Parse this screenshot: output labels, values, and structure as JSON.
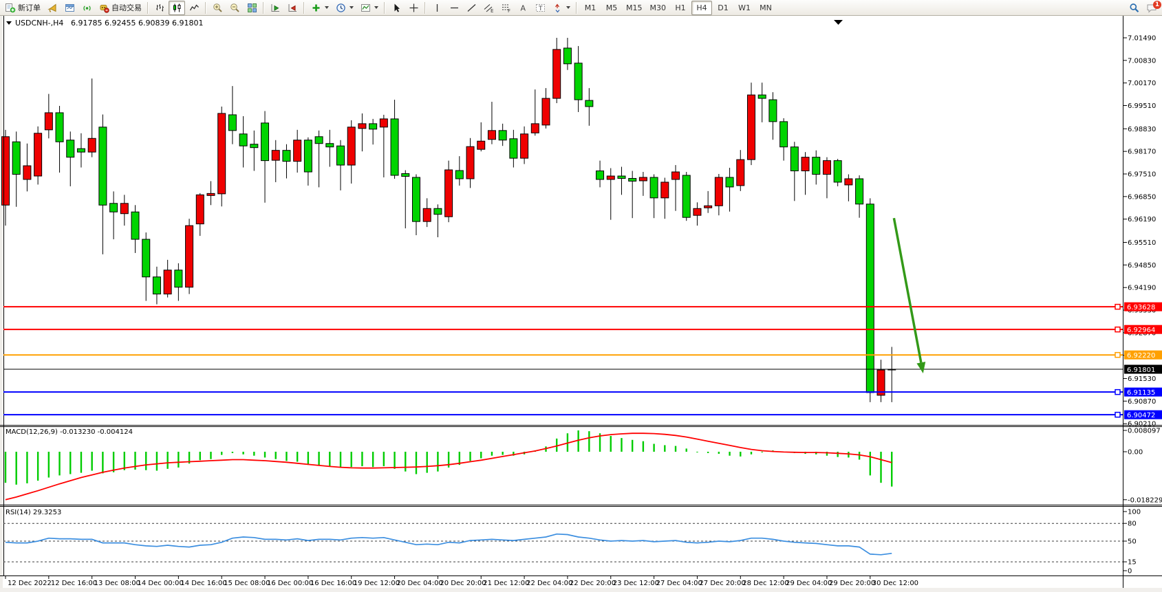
{
  "toolbar": {
    "notification_count": "1",
    "timeframes": {
      "items": [
        "M1",
        "M5",
        "M15",
        "M30",
        "H1",
        "H4",
        "D1",
        "W1",
        "MN"
      ],
      "active": "H4"
    },
    "groups": [
      {
        "type": "buttons",
        "items": [
          {
            "name": "new-order-button",
            "icon": "new-order",
            "label": "新订单"
          }
        ]
      },
      {
        "type": "buttons",
        "items": [
          {
            "name": "alerts-button",
            "icon": "horn"
          },
          {
            "name": "open-chart-window-button",
            "icon": "window"
          },
          {
            "name": "signals-button",
            "icon": "signal"
          },
          {
            "name": "auto-trading-button",
            "icon": "autotrade",
            "label": "自动交易"
          }
        ]
      },
      {
        "type": "sep"
      },
      {
        "type": "buttons",
        "items": [
          {
            "name": "bar-chart-type-button",
            "icon": "bars"
          },
          {
            "name": "candlestick-chart-type-button",
            "icon": "candles",
            "active": true
          },
          {
            "name": "line-chart-type-button",
            "icon": "linechart"
          }
        ]
      },
      {
        "type": "sep"
      },
      {
        "type": "buttons",
        "items": [
          {
            "name": "zoom-in-button",
            "icon": "zoom-in"
          },
          {
            "name": "zoom-out-button",
            "icon": "zoom-out"
          },
          {
            "name": "tile-windows-button",
            "icon": "tile"
          }
        ]
      },
      {
        "type": "sep"
      },
      {
        "type": "buttons",
        "items": [
          {
            "name": "auto-scroll-button",
            "icon": "autoscroll"
          },
          {
            "name": "chart-shift-button",
            "icon": "shift"
          }
        ]
      },
      {
        "type": "sep"
      },
      {
        "type": "buttons",
        "items": [
          {
            "name": "indicators-button",
            "icon": "indicators",
            "caret": true
          },
          {
            "name": "periods-button",
            "icon": "clock",
            "caret": true
          },
          {
            "name": "templates-button",
            "icon": "template",
            "caret": true
          }
        ]
      },
      {
        "type": "sep"
      },
      {
        "type": "buttons",
        "items": [
          {
            "name": "cursor-tool-button",
            "icon": "cursor"
          },
          {
            "name": "crosshair-tool-button",
            "icon": "crosshair"
          }
        ]
      },
      {
        "type": "sep"
      },
      {
        "type": "buttons",
        "items": [
          {
            "name": "vertical-line-tool-button",
            "icon": "vline"
          },
          {
            "name": "horizontal-line-tool-button",
            "icon": "hline"
          },
          {
            "name": "trendline-tool-button",
            "icon": "trend"
          },
          {
            "name": "channel-tool-button",
            "icon": "channel"
          },
          {
            "name": "fibonacci-tool-button",
            "icon": "fibo"
          },
          {
            "name": "text-tool-button",
            "icon": "text-a"
          },
          {
            "name": "text-label-tool-button",
            "icon": "text-t"
          },
          {
            "name": "arrows-tool-button",
            "icon": "arrows",
            "caret": true
          }
        ]
      },
      {
        "type": "sep"
      },
      {
        "type": "timeframes"
      },
      {
        "type": "spacer"
      },
      {
        "type": "buttons",
        "items": [
          {
            "name": "search-button",
            "icon": "search"
          },
          {
            "name": "notifications-chat-button",
            "icon": "chat",
            "badge": true
          }
        ]
      }
    ]
  },
  "chart_data": {
    "type": "candlestick",
    "symbol": "USDCNH-,H4",
    "timeframe": "H4",
    "title_ohlc_text": "6.91785 6.92455 6.90839 6.91801",
    "current_bar": {
      "open": 6.91785,
      "high": 6.92455,
      "low": 6.90839,
      "close": 6.91801
    },
    "price_range": [
      6.9021,
      7.0175
    ],
    "colors": {
      "up_candle": "#ef0000",
      "down_candle": "#00d400",
      "candle_border": "#000000",
      "macd_histogram": "#00cc00",
      "macd_signal": "#ff0000",
      "rsi_line": "#3b8ee0"
    },
    "price_axis_ticks": [
      {
        "p": 7.0149,
        "text": "7.01490"
      },
      {
        "p": 7.0083,
        "text": "7.00830"
      },
      {
        "p": 7.0017,
        "text": "7.00170"
      },
      {
        "p": 6.9951,
        "text": "6.99510"
      },
      {
        "p": 6.9883,
        "text": "6.98830"
      },
      {
        "p": 6.9817,
        "text": "6.98170"
      },
      {
        "p": 6.9751,
        "text": "6.97510"
      },
      {
        "p": 6.9685,
        "text": "6.96850"
      },
      {
        "p": 6.9619,
        "text": "6.96190"
      },
      {
        "p": 6.9551,
        "text": "6.95510"
      },
      {
        "p": 6.9485,
        "text": "6.94850"
      },
      {
        "p": 6.9419,
        "text": "6.94190"
      },
      {
        "p": 6.9353,
        "text": "6.93530"
      },
      {
        "p": 6.9287,
        "text": "6.92870"
      },
      {
        "p": 6.9221,
        "text": "6.92210"
      },
      {
        "p": 6.9153,
        "text": "6.91530"
      },
      {
        "p": 6.9087,
        "text": "6.90870"
      },
      {
        "p": 6.9021,
        "text": "6.90210"
      }
    ],
    "time_axis_labels": [
      "12 Dec 2022",
      "12 Dec 16:00",
      "13 Dec 08:00",
      "14 Dec 00:00",
      "14 Dec 16:00",
      "15 Dec 08:00",
      "16 Dec 00:00",
      "16 Dec 16:00",
      "19 Dec 12:00",
      "20 Dec 04:00",
      "20 Dec 20:00",
      "21 Dec 12:00",
      "22 Dec 04:00",
      "22 Dec 20:00",
      "23 Dec 12:00",
      "27 Dec 04:00",
      "27 Dec 20:00",
      "28 Dec 12:00",
      "29 Dec 04:00",
      "29 Dec 20:00",
      "30 Dec 12:00"
    ],
    "bars_per_time_label": 4,
    "horizontal_lines": [
      {
        "name": "resistance-line-1",
        "price": 6.93628,
        "text": "6.93628",
        "color": "#ff0000",
        "width": 2,
        "handle": true
      },
      {
        "name": "resistance-line-2",
        "price": 6.92964,
        "text": "6.92964",
        "color": "#ff0000",
        "width": 2,
        "handle": true
      },
      {
        "name": "pivot-line-orange",
        "price": 6.9222,
        "text": "6.92220",
        "color": "#ffa000",
        "width": 2,
        "handle": true
      },
      {
        "name": "bid-price-line",
        "price": 6.91801,
        "text": "6.91801",
        "color": "#000000",
        "width": 1,
        "handle": false
      },
      {
        "name": "support-line-1",
        "price": 6.91135,
        "text": "6.91135",
        "color": "#0000ff",
        "width": 2,
        "handle": true
      },
      {
        "name": "support-line-2",
        "price": 6.90472,
        "text": "6.90472",
        "color": "#0000ff",
        "width": 2,
        "handle": true
      }
    ],
    "candles_ohlc": [
      [
        6.966,
        6.988,
        6.96,
        6.986
      ],
      [
        6.9845,
        6.9875,
        6.9655,
        6.975
      ],
      [
        6.9735,
        6.984,
        6.97,
        6.9775
      ],
      [
        6.9745,
        6.989,
        6.972,
        6.987
      ],
      [
        6.988,
        6.9985,
        6.9855,
        6.993
      ],
      [
        6.993,
        6.995,
        6.9755,
        6.9845
      ],
      [
        6.985,
        6.9875,
        6.9715,
        6.98
      ],
      [
        6.9825,
        6.987,
        6.977,
        6.9815
      ],
      [
        6.9815,
        7.003,
        6.98,
        6.9855
      ],
      [
        6.9888,
        6.9925,
        6.9516,
        6.966
      ],
      [
        6.9665,
        6.97,
        6.956,
        6.964
      ],
      [
        6.9635,
        6.969,
        6.96,
        6.9665
      ],
      [
        6.964,
        6.966,
        6.952,
        6.956
      ],
      [
        6.956,
        6.958,
        6.938,
        6.945
      ],
      [
        6.945,
        6.948,
        6.937,
        6.94
      ],
      [
        6.94,
        6.95,
        6.939,
        6.947
      ],
      [
        6.947,
        6.949,
        6.938,
        6.942
      ],
      [
        6.942,
        6.962,
        6.94,
        6.96
      ],
      [
        6.9605,
        6.9695,
        6.957,
        6.969
      ],
      [
        6.9688,
        6.973,
        6.966,
        6.9694
      ],
      [
        6.9693,
        6.9948,
        6.9656,
        6.9928
      ],
      [
        6.9924,
        7.0008,
        6.9838,
        6.9878
      ],
      [
        6.9868,
        6.992,
        6.977,
        6.9833
      ],
      [
        6.9838,
        6.9878,
        6.976,
        6.9828
      ],
      [
        6.99,
        6.9935,
        6.9667,
        6.979
      ],
      [
        6.9791,
        6.985,
        6.9727,
        6.982
      ],
      [
        6.982,
        6.9838,
        6.9738,
        6.9788
      ],
      [
        6.9788,
        6.988,
        6.9755,
        6.985
      ],
      [
        6.985,
        6.9858,
        6.9717,
        6.9757
      ],
      [
        6.986,
        6.9878,
        6.9712,
        6.984
      ],
      [
        6.984,
        6.988,
        6.9772,
        6.983
      ],
      [
        6.9833,
        6.985,
        6.9703,
        6.9777
      ],
      [
        6.9777,
        6.9908,
        6.9723,
        6.9888
      ],
      [
        6.9884,
        6.9928,
        6.9817,
        6.9898
      ],
      [
        6.9898,
        6.9912,
        6.9837,
        6.9882
      ],
      [
        6.9888,
        6.9924,
        6.9741,
        6.9912
      ],
      [
        6.9912,
        6.9968,
        6.9737,
        6.9747
      ],
      [
        6.9752,
        6.9762,
        6.9592,
        6.9744
      ],
      [
        6.9741,
        6.975,
        6.9572,
        6.9612
      ],
      [
        6.9612,
        6.968,
        6.9596,
        6.965
      ],
      [
        6.965,
        6.9662,
        6.9566,
        6.9633
      ],
      [
        6.9626,
        6.979,
        6.961,
        6.9763
      ],
      [
        6.9761,
        6.9803,
        6.9717,
        6.9737
      ],
      [
        6.9737,
        6.9856,
        6.971,
        6.9831
      ],
      [
        6.9823,
        6.9902,
        6.9817,
        6.9847
      ],
      [
        6.9852,
        6.9962,
        6.9838,
        6.9878
      ],
      [
        6.9878,
        6.9898,
        6.9833,
        6.985
      ],
      [
        6.9854,
        6.988,
        6.977,
        6.9797
      ],
      [
        6.9797,
        6.989,
        6.978,
        6.9868
      ],
      [
        6.9871,
        6.9998,
        6.9863,
        6.9898
      ],
      [
        6.9894,
        7.0002,
        6.9884,
        6.9972
      ],
      [
        6.9972,
        7.0149,
        6.9958,
        7.0115
      ],
      [
        7.0119,
        7.0149,
        7.0055,
        7.0073
      ],
      [
        7.0075,
        7.0125,
        6.9932,
        6.9968
      ],
      [
        6.9966,
        7.0002,
        6.9892,
        6.9948
      ],
      [
        6.976,
        6.979,
        6.9712,
        6.9735
      ],
      [
        6.9735,
        6.9768,
        6.9617,
        6.9745
      ],
      [
        6.9745,
        6.9772,
        6.969,
        6.9738
      ],
      [
        6.9738,
        6.976,
        6.9622,
        6.973
      ],
      [
        6.9731,
        6.9757,
        6.9687,
        6.9741
      ],
      [
        6.9741,
        6.975,
        6.9622,
        6.9681
      ],
      [
        6.9681,
        6.974,
        6.962,
        6.9727
      ],
      [
        6.9735,
        6.9777,
        6.9643,
        6.9757
      ],
      [
        6.9747,
        6.9757,
        6.9614,
        6.9624
      ],
      [
        6.963,
        6.9668,
        6.96,
        6.965
      ],
      [
        6.9652,
        6.9701,
        6.9637,
        6.9658
      ],
      [
        6.9658,
        6.9751,
        6.963,
        6.9741
      ],
      [
        6.9741,
        6.9769,
        6.9641,
        6.9713
      ],
      [
        6.9717,
        6.9821,
        6.9701,
        6.9793
      ],
      [
        6.9793,
        7.0018,
        6.9777,
        6.9982
      ],
      [
        6.9982,
        7.0018,
        6.9902,
        6.9972
      ],
      [
        6.9968,
        6.999,
        6.9851,
        6.9904
      ],
      [
        6.9904,
        6.9914,
        6.979,
        6.983
      ],
      [
        6.983,
        6.9845,
        6.9672,
        6.976
      ],
      [
        6.976,
        6.9815,
        6.969,
        6.98
      ],
      [
        6.98,
        6.982,
        6.972,
        6.975
      ],
      [
        6.975,
        6.98,
        6.968,
        6.979
      ],
      [
        6.979,
        6.9795,
        6.9715,
        6.9727
      ],
      [
        6.9719,
        6.975,
        6.9671,
        6.9737
      ],
      [
        6.9737,
        6.9747,
        6.9623,
        6.9663
      ],
      [
        6.9663,
        6.968,
        6.9084,
        6.9112
      ],
      [
        6.9104,
        6.9208,
        6.9084,
        6.9178
      ],
      [
        6.91785,
        6.92455,
        6.90839,
        6.91801
      ]
    ],
    "indicators": {
      "macd": {
        "label": "MACD(12,26,9)",
        "values_text": "-0.013230 -0.004124",
        "macd_value": -0.01323,
        "signal_value": -0.004124,
        "axis_ticks": [
          {
            "v": 0.008097,
            "text": "0.008097"
          },
          {
            "v": 0,
            "text": "0.00"
          },
          {
            "v": -0.018229,
            "text": "-0.018229"
          }
        ],
        "range": {
          "max": 0.008097,
          "min": -0.018229
        },
        "histogram": [
          -0.0118,
          -0.0125,
          -0.012,
          -0.011,
          -0.0098,
          -0.009,
          -0.0085,
          -0.008,
          -0.0072,
          -0.0082,
          -0.0078,
          -0.007,
          -0.0068,
          -0.007,
          -0.0072,
          -0.0065,
          -0.006,
          -0.0045,
          -0.0032,
          -0.0028,
          -0.0012,
          -0.0005,
          -0.001,
          -0.0015,
          -0.0022,
          -0.0028,
          -0.0035,
          -0.0038,
          -0.005,
          -0.0052,
          -0.0055,
          -0.006,
          -0.0058,
          -0.0055,
          -0.0058,
          -0.0055,
          -0.0065,
          -0.0075,
          -0.0085,
          -0.008,
          -0.0075,
          -0.006,
          -0.005,
          -0.0035,
          -0.0025,
          -0.0015,
          -0.0012,
          -0.0015,
          -0.001,
          0.0005,
          0.002,
          0.005,
          0.007,
          0.0081,
          0.0078,
          0.007,
          0.006,
          0.0052,
          0.0045,
          0.004,
          0.003,
          0.0025,
          0.0022,
          0.0012,
          0.0002,
          -0.0005,
          -0.0008,
          -0.0015,
          -0.0018,
          -0.001,
          0.0002,
          0.0005,
          0.0002,
          -0.0005,
          -0.0008,
          -0.001,
          -0.0015,
          -0.002,
          -0.0022,
          -0.003,
          -0.009,
          -0.0118,
          -0.01323
        ],
        "signal": [
          -0.0182,
          -0.0172,
          -0.016,
          -0.0148,
          -0.0135,
          -0.0122,
          -0.011,
          -0.0098,
          -0.0088,
          -0.0078,
          -0.007,
          -0.0062,
          -0.0056,
          -0.005,
          -0.0046,
          -0.0042,
          -0.004,
          -0.0038,
          -0.0036,
          -0.0034,
          -0.0032,
          -0.003,
          -0.003,
          -0.0032,
          -0.0034,
          -0.0037,
          -0.004,
          -0.0044,
          -0.0048,
          -0.0052,
          -0.0056,
          -0.0059,
          -0.0061,
          -0.0062,
          -0.0062,
          -0.0061,
          -0.006,
          -0.0059,
          -0.0058,
          -0.0056,
          -0.0053,
          -0.0049,
          -0.0044,
          -0.0038,
          -0.0032,
          -0.0025,
          -0.0018,
          -0.0011,
          -0.0004,
          0.0003,
          0.0012,
          0.0022,
          0.0033,
          0.0044,
          0.0053,
          0.006,
          0.0065,
          0.0068,
          0.007,
          0.007,
          0.0069,
          0.0066,
          0.0062,
          0.0056,
          0.0048,
          0.004,
          0.0032,
          0.0024,
          0.0016,
          0.0009,
          0.0004,
          0.0001,
          -0.0001,
          -0.0002,
          -0.0003,
          -0.0003,
          -0.0004,
          -0.0006,
          -0.0008,
          -0.0012,
          -0.0019,
          -0.003,
          -0.0041
        ]
      },
      "rsi": {
        "label": "RSI(14)",
        "value_text": "29.3253",
        "value": 29.3253,
        "levels": [
          80,
          50,
          15
        ],
        "axis_ticks": [
          {
            "v": 100,
            "text": "100"
          },
          {
            "v": 80,
            "text": "80"
          },
          {
            "v": 50,
            "text": "50"
          },
          {
            "v": 15,
            "text": "15"
          },
          {
            "v": 0,
            "text": "0"
          }
        ],
        "series": [
          48,
          47,
          47,
          50,
          55,
          54,
          54,
          53,
          53,
          47,
          47,
          47,
          44,
          42,
          41,
          43,
          41,
          40,
          43,
          44,
          48,
          55,
          57,
          56,
          53,
          53,
          52,
          54,
          51,
          53,
          53,
          52,
          55,
          56,
          55,
          56,
          52,
          48,
          44,
          45,
          44,
          48,
          47,
          51,
          52,
          53,
          52,
          51,
          53,
          55,
          57,
          62,
          61,
          57,
          55,
          52,
          50,
          51,
          50,
          51,
          49,
          50,
          51,
          48,
          47,
          48,
          50,
          49,
          51,
          55,
          55,
          53,
          50,
          48,
          47,
          46,
          44,
          42,
          42,
          40,
          28,
          27,
          29.3
        ]
      }
    },
    "annotations": {
      "down_arrow": {
        "from_bar": 82.2,
        "from_price": 6.9622,
        "to_bar": 84.9,
        "to_price": 6.9168,
        "color": "#339918",
        "width": 3.5
      }
    }
  }
}
